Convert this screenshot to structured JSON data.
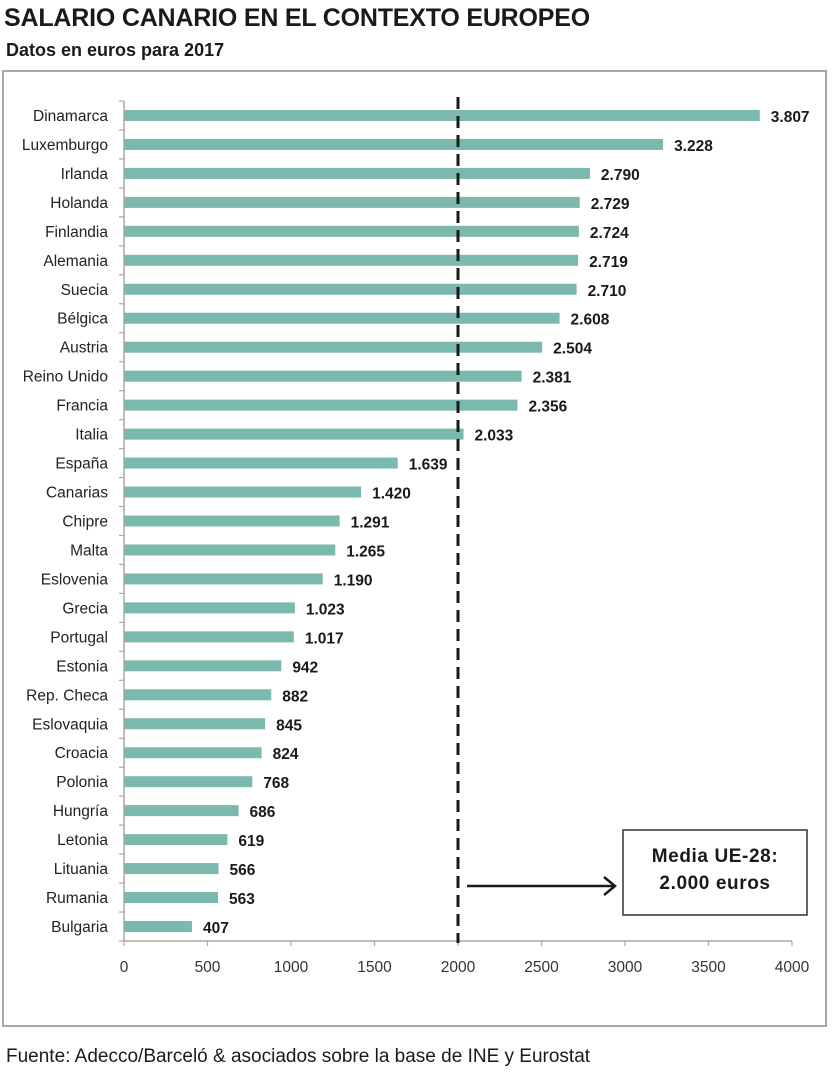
{
  "header": {
    "title": "SALARIO CANARIO EN EL CONTEXTO EUROPEO",
    "subtitle": "Datos en euros para 2017"
  },
  "footer": {
    "source": "Fuente: Adecco/Barceló & asociados sobre la base de INE y Eurostat"
  },
  "colors": {
    "bar": "#7bb8ae",
    "axis": "#a8a8a8",
    "reference_line": "#1a1a1a"
  },
  "chart_data": {
    "type": "bar",
    "orientation": "horizontal",
    "title": "SALARIO CANARIO EN EL CONTEXTO EUROPEO",
    "subtitle": "Datos en euros para 2017",
    "xlabel": "",
    "ylabel": "",
    "xlim": [
      0,
      4000
    ],
    "xticks": [
      0,
      500,
      1000,
      1500,
      2000,
      2500,
      3000,
      3500,
      4000
    ],
    "grid": false,
    "categories": [
      "Dinamarca",
      "Luxemburgo",
      "Irlanda",
      "Holanda",
      "Finlandia",
      "Alemania",
      "Suecia",
      "Bélgica",
      "Austria",
      "Reino Unido",
      "Francia",
      "Italia",
      "España",
      "Canarias",
      "Chipre",
      "Malta",
      "Eslovenia",
      "Grecia",
      "Portugal",
      "Estonia",
      "Rep. Checa",
      "Eslovaquia",
      "Croacia",
      "Polonia",
      "Hungría",
      "Letonia",
      "Lituania",
      "Rumania",
      "Bulgaria"
    ],
    "values": [
      3807,
      3228,
      2790,
      2729,
      2724,
      2719,
      2710,
      2608,
      2504,
      2381,
      2356,
      2033,
      1639,
      1420,
      1291,
      1265,
      1190,
      1023,
      1017,
      942,
      882,
      845,
      824,
      768,
      686,
      619,
      566,
      563,
      407
    ],
    "value_labels": [
      "3.807",
      "3.228",
      "2.790",
      "2.729",
      "2.724",
      "2.719",
      "2.710",
      "2.608",
      "2.504",
      "2.381",
      "2.356",
      "2.033",
      "1.639",
      "1.420",
      "1.291",
      "1.265",
      "1.190",
      "1.023",
      "1.017",
      "942",
      "882",
      "845",
      "824",
      "768",
      "686",
      "619",
      "566",
      "563",
      "407"
    ],
    "reference_line": {
      "value": 2000,
      "style": "dashed",
      "annotation_lines": [
        "Media UE-28:",
        "2.000 euros"
      ]
    },
    "source": "Fuente: Adecco/Barceló & asociados sobre la base de INE y Eurostat"
  }
}
